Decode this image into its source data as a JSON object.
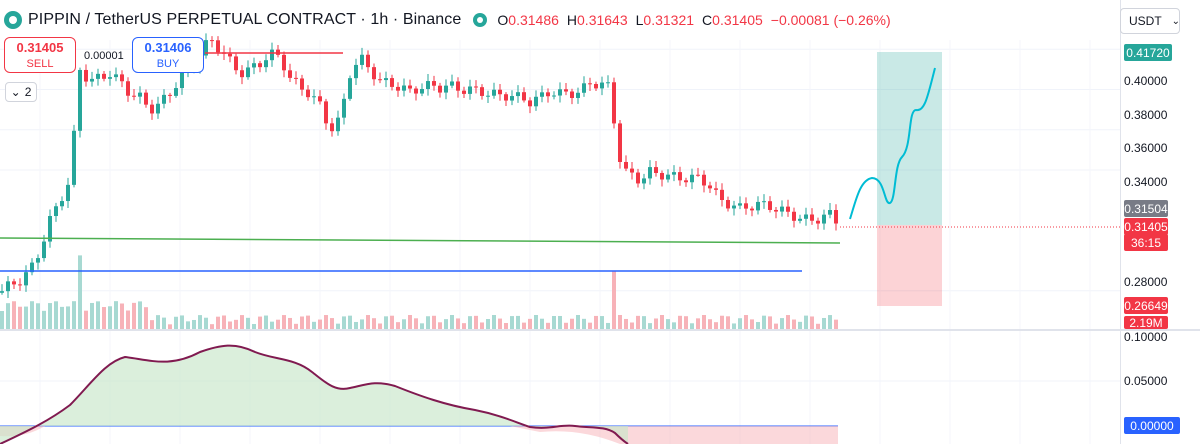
{
  "header": {
    "title": "PIPPIN / TetherUS PERPETUAL CONTRACT · 1h · Binance",
    "ohlc": [
      {
        "key": "O",
        "value": "0.31486"
      },
      {
        "key": "H",
        "value": "0.31643"
      },
      {
        "key": "L",
        "value": "0.31321"
      },
      {
        "key": "C",
        "value": "0.31405"
      }
    ],
    "change": "−0.00081 (−0.26%)",
    "currency": "USDT"
  },
  "trade": {
    "sell_price": "0.31405",
    "sell_label": "SELL",
    "buy_price": "0.31406",
    "buy_label": "BUY",
    "spread": "0.00001"
  },
  "collapse_label": "2",
  "axis": {
    "price_ticks": [
      "0.40000",
      "0.38000",
      "0.36000",
      "0.34000",
      "0.28000"
    ],
    "ind_ticks": [
      "0.10000",
      "0.05000"
    ]
  },
  "tags": {
    "target": "0.41720",
    "entry": "0.31504",
    "last": "0.31405",
    "countdown": "36:15",
    "stop": "0.26649",
    "volume": "2.19M",
    "ind_zero": "0.00000"
  },
  "colors": {
    "up": "#26a69a",
    "down": "#f23645",
    "green_line": "#4caf50",
    "blue_line": "#2962ff",
    "indicator": "#801a50",
    "forecast": "#00bcd4"
  },
  "chart_data": {
    "type": "candlestick",
    "ylim": [
      0.2605,
      0.4245
    ],
    "indicator_ylim": [
      -0.0065,
      0.1
    ]
  }
}
